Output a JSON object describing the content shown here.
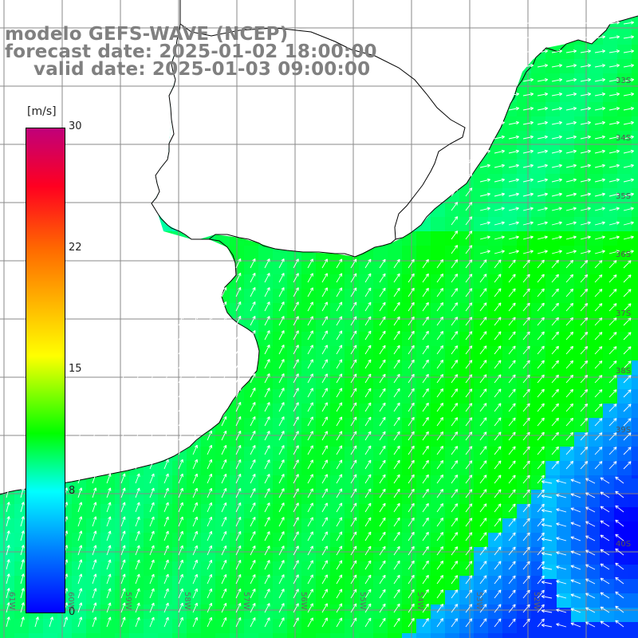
{
  "title": {
    "line1": "modelo GEFS-WAVE (NCEP)",
    "line2": "forecast date: 2025-01-02 18:00:00",
    "line3": "valid date: 2025-01-03 09:00:00"
  },
  "colorbar": {
    "unit": "[m/s]",
    "ticks": [
      "30",
      "22",
      "15",
      "8",
      "0"
    ],
    "stops": [
      {
        "value": 30,
        "color": "#c0007a"
      },
      {
        "value": 26,
        "color": "#ff0020"
      },
      {
        "value": 22,
        "color": "#ff6a00"
      },
      {
        "value": 16,
        "color": "#ffff00"
      },
      {
        "value": 11,
        "color": "#00ff00"
      },
      {
        "value": 8,
        "color": "#00ffff"
      },
      {
        "value": 4,
        "color": "#0080ff"
      },
      {
        "value": 0,
        "color": "#0000ff"
      }
    ]
  },
  "map": {
    "lon_labels": [
      "61W",
      "60W",
      "59W",
      "58W",
      "57W",
      "56W",
      "55W",
      "54W",
      "53W",
      "52W"
    ],
    "lat_labels": [
      "33S",
      "34S",
      "35S",
      "36S",
      "37S",
      "38S",
      "39S",
      "40S"
    ],
    "colors": {
      "grid": "#8a8a8a",
      "coast": "#000000",
      "land": "#ffffff",
      "arrow": "#ffffff",
      "wind_green": "#00ff00",
      "wind_cyan": "#00ffff",
      "wind_blue": "#0030ff"
    }
  }
}
